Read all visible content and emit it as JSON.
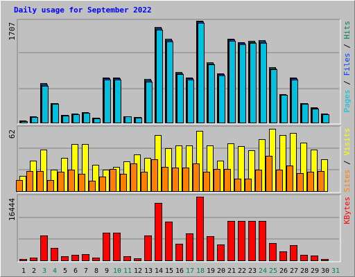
{
  "chart_data": {
    "type": "bar",
    "title": "Daily usage for September 2022",
    "categories": [
      "1",
      "2",
      "3",
      "4",
      "5",
      "6",
      "7",
      "8",
      "9",
      "10",
      "11",
      "12",
      "13",
      "14",
      "15",
      "16",
      "17",
      "18",
      "19",
      "20",
      "21",
      "22",
      "23",
      "24",
      "25",
      "26",
      "27",
      "28",
      "29",
      "30",
      "31"
    ],
    "weekend_days": [
      3,
      4,
      10,
      11,
      17,
      18,
      24,
      25,
      31
    ],
    "panels": [
      {
        "id": "hits-files",
        "scale_max_label": "1707",
        "ymax": 1707,
        "right_label": [
          {
            "text": "Pages",
            "color": "#00c0e0"
          },
          {
            "text": " / ",
            "color": "#000000"
          },
          {
            "text": "Files",
            "color": "#0040ff"
          },
          {
            "text": " / ",
            "color": "#000000"
          },
          {
            "text": "Hits",
            "color": "#00805c"
          }
        ],
        "series": [
          {
            "name": "Hits",
            "color": "#00805c",
            "values": [
              30,
              100,
              660,
              330,
              130,
              150,
              170,
              80,
              760,
              760,
              110,
              90,
              730,
              1600,
              1400,
              850,
              760,
              1707,
              1010,
              830,
              1410,
              1350,
              1370,
              1380,
              930,
              480,
              760,
              330,
              250,
              150,
              0
            ]
          },
          {
            "name": "Files",
            "color": "#0040ff",
            "values": [
              28,
              95,
              640,
              320,
              125,
              145,
              165,
              78,
              740,
              740,
              105,
              88,
              710,
              1580,
              1380,
              830,
              740,
              1690,
              990,
              810,
              1390,
              1330,
              1350,
              1360,
              910,
              470,
              740,
              320,
              240,
              145,
              0
            ]
          },
          {
            "name": "Pages",
            "color": "#00c0e0",
            "values": [
              25,
              90,
              620,
              310,
              120,
              140,
              160,
              75,
              720,
              720,
              100,
              85,
              690,
              1560,
              1360,
              810,
              720,
              1670,
              970,
              790,
              1370,
              1310,
              1330,
              1340,
              890,
              460,
              720,
              310,
              230,
              140,
              0
            ]
          }
        ]
      },
      {
        "id": "visits-sites",
        "scale_max_label": "62",
        "ymax": 62,
        "right_label": [
          {
            "text": "Sites",
            "color": "#ff8000"
          },
          {
            "text": " / ",
            "color": "#000000"
          },
          {
            "text": "Visits",
            "color": "#ffff00"
          }
        ],
        "series": [
          {
            "name": "Visits",
            "color": "#ffff00",
            "values": [
              15,
              30,
              41,
              21,
              33,
              46,
              46,
              26,
              21,
              24,
              29,
              36,
              33,
              55,
              42,
              45,
              45,
              59,
              45,
              30,
              47,
              44,
              40,
              51,
              61,
              55,
              57,
              48,
              41,
              31,
              0
            ]
          },
          {
            "name": "Sites",
            "color": "#ff8000",
            "values": [
              11,
              20,
              20,
              11,
              19,
              21,
              17,
              10,
              14,
              22,
              17,
              27,
              19,
              31,
              24,
              23,
              23,
              27,
              19,
              22,
              22,
              12,
              12,
              21,
              35,
              21,
              25,
              18,
              19,
              20,
              0
            ]
          }
        ]
      },
      {
        "id": "kbytes",
        "scale_max_label": "16444",
        "ymax": 16444,
        "right_label": [
          {
            "text": "KBytes",
            "color": "#ff0000"
          }
        ],
        "series": [
          {
            "name": "KBytes",
            "color": "#ff0000",
            "values": [
              300,
              700,
              6500,
              3200,
              1100,
              1400,
              1600,
              700,
              7100,
              7100,
              1100,
              500,
              6500,
              14800,
              10000,
              4300,
              7000,
              16444,
              6200,
              4200,
              10100,
              10100,
              10100,
              10100,
              4500,
              2300,
              4000,
              1500,
              1200,
              400,
              0
            ]
          }
        ]
      }
    ]
  }
}
